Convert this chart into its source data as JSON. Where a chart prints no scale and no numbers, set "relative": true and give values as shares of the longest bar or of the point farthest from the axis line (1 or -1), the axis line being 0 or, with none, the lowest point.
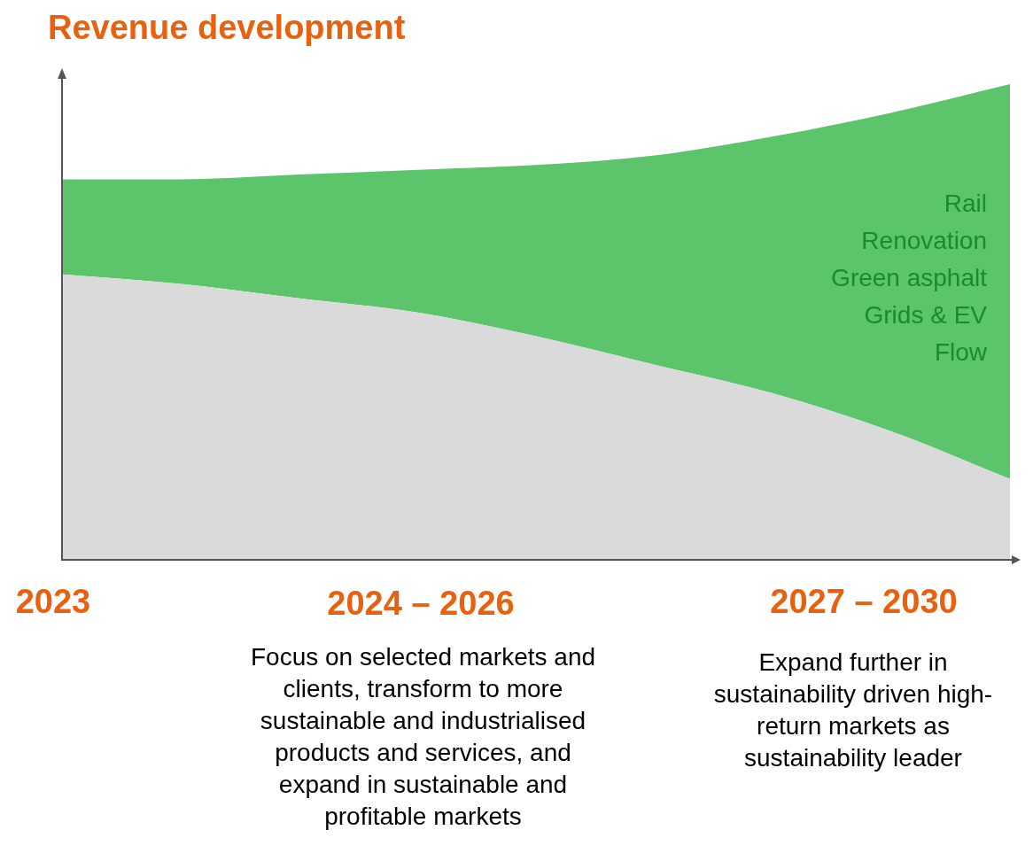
{
  "chart_data": {
    "type": "area",
    "title": "Revenue development",
    "relative": true,
    "stacked": true,
    "categories": [
      null,
      null,
      null,
      null,
      null,
      null,
      null,
      null,
      null
    ],
    "series": [
      {
        "color": "#dadada",
        "values": [
          0.6,
          0.58,
          0.55,
          0.52,
          0.47,
          0.41,
          0.35,
          0.27,
          0.17
        ]
      },
      {
        "color": "#5cc46a",
        "values": [
          0.2,
          0.22,
          0.26,
          0.3,
          0.36,
          0.44,
          0.54,
          0.67,
          0.83
        ]
      }
    ],
    "annotations": [
      "2023",
      "2024 – 2026",
      "Focus on selected markets and clients, transform to more sustainable and industrialised products and services, and expand in sustainable and profitable markets",
      "2027 – 2030",
      "Expand further in sustainability driven high-return markets as sustainability leader",
      "Rail",
      "Renovation",
      "Green asphalt",
      "Grids & EV",
      "Flow"
    ],
    "grid": false,
    "legend": false,
    "marker": "none"
  }
}
